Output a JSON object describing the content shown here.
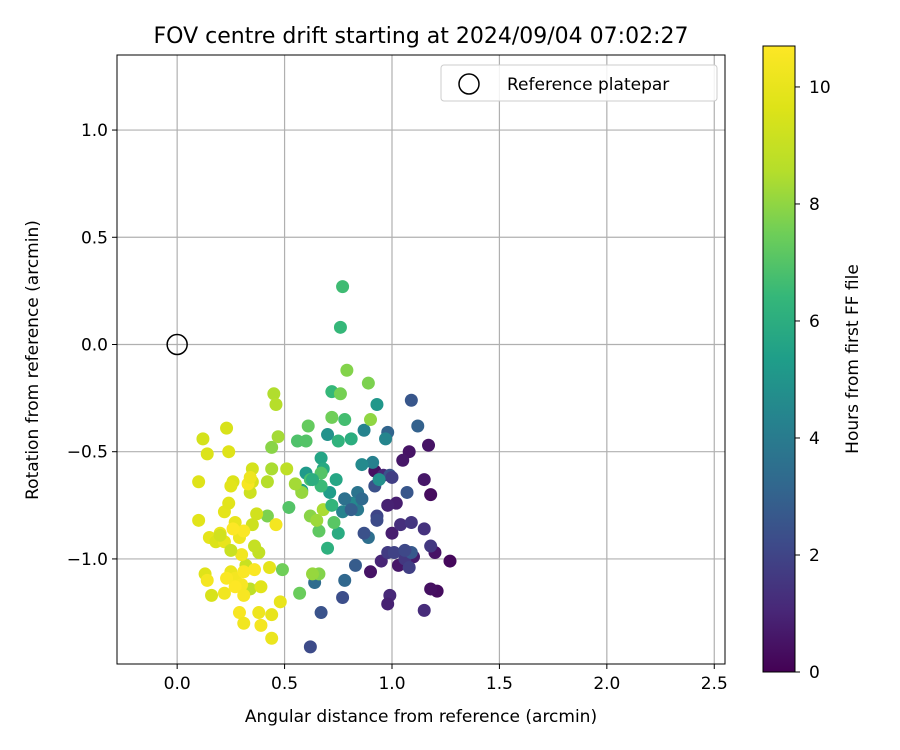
{
  "chart_data": {
    "type": "scatter",
    "title": "FOV centre drift starting at 2024/09/04 07:02:27",
    "xlabel": "Angular distance from reference (arcmin)",
    "ylabel": "Rotation from reference (arcmin)",
    "xlim": [
      -0.28,
      2.55
    ],
    "ylim": [
      -1.49,
      1.35
    ],
    "xticks": [
      0.0,
      0.5,
      1.0,
      1.5,
      2.0,
      2.5
    ],
    "yticks": [
      -1.0,
      -0.5,
      0.0,
      0.5,
      1.0
    ],
    "xtick_labels": [
      "0.0",
      "0.5",
      "1.0",
      "1.5",
      "2.0",
      "2.5"
    ],
    "ytick_labels": [
      "−1.0",
      "−0.5",
      "0.0",
      "0.5",
      "1.0"
    ],
    "grid": true,
    "legend": {
      "position": "top-right",
      "label": "Reference platepar",
      "marker": "open-circle"
    },
    "reference_point": {
      "x": 0.0,
      "y": 0.0
    },
    "colorbar": {
      "label": "Hours from first FF file",
      "range": [
        0,
        10.7
      ],
      "ticks": [
        0,
        2,
        4,
        6,
        8,
        10
      ],
      "tick_labels": [
        "0",
        "2",
        "4",
        "6",
        "8",
        "10"
      ],
      "colormap": "viridis"
    },
    "points": [
      {
        "x": 1.27,
        "y": -1.01,
        "c": 0.2
      },
      {
        "x": 1.21,
        "y": -1.15,
        "c": 0.3
      },
      {
        "x": 1.18,
        "y": -1.14,
        "c": 0.4
      },
      {
        "x": 1.18,
        "y": -0.7,
        "c": 0.3
      },
      {
        "x": 1.17,
        "y": -0.47,
        "c": 0.5
      },
      {
        "x": 1.15,
        "y": -0.63,
        "c": 0.6
      },
      {
        "x": 1.2,
        "y": -0.97,
        "c": 0.5
      },
      {
        "x": 1.1,
        "y": -0.99,
        "c": 0.7
      },
      {
        "x": 1.08,
        "y": -0.5,
        "c": 0.5
      },
      {
        "x": 1.05,
        "y": -0.54,
        "c": 0.6
      },
      {
        "x": 1.02,
        "y": -0.74,
        "c": 0.8
      },
      {
        "x": 0.98,
        "y": -0.75,
        "c": 0.9
      },
      {
        "x": 1.0,
        "y": -0.88,
        "c": 0.8
      },
      {
        "x": 0.95,
        "y": -1.01,
        "c": 1.0
      },
      {
        "x": 0.99,
        "y": -1.17,
        "c": 1.1
      },
      {
        "x": 0.98,
        "y": -1.21,
        "c": 0.9
      },
      {
        "x": 1.15,
        "y": -1.24,
        "c": 1.2
      },
      {
        "x": 0.92,
        "y": -0.59,
        "c": 0.4
      },
      {
        "x": 0.9,
        "y": -1.06,
        "c": 0.5
      },
      {
        "x": 1.03,
        "y": -1.03,
        "c": 0.6
      },
      {
        "x": 1.04,
        "y": -0.84,
        "c": 1.3
      },
      {
        "x": 0.96,
        "y": -0.61,
        "c": 1.1
      },
      {
        "x": 1.15,
        "y": -0.86,
        "c": 1.4
      },
      {
        "x": 1.09,
        "y": -0.83,
        "c": 1.5
      },
      {
        "x": 1.18,
        "y": -0.94,
        "c": 1.6
      },
      {
        "x": 0.98,
        "y": -0.97,
        "c": 1.7
      },
      {
        "x": 1.06,
        "y": -1.0,
        "c": 1.6
      },
      {
        "x": 1.08,
        "y": -1.04,
        "c": 1.8
      },
      {
        "x": 1.01,
        "y": -0.97,
        "c": 1.9
      },
      {
        "x": 0.93,
        "y": -0.8,
        "c": 2.0
      },
      {
        "x": 0.93,
        "y": -0.82,
        "c": 2.2
      },
      {
        "x": 0.92,
        "y": -0.66,
        "c": 2.4
      },
      {
        "x": 0.99,
        "y": -0.61,
        "c": 2.5
      },
      {
        "x": 1.07,
        "y": -0.69,
        "c": 2.6
      },
      {
        "x": 1.09,
        "y": -0.97,
        "c": 2.7
      },
      {
        "x": 1.09,
        "y": -0.26,
        "c": 2.6
      },
      {
        "x": 1.12,
        "y": -0.38,
        "c": 3.0
      },
      {
        "x": 0.98,
        "y": -0.41,
        "c": 3.1
      },
      {
        "x": 0.77,
        "y": -1.18,
        "c": 2.3
      },
      {
        "x": 0.67,
        "y": -1.25,
        "c": 2.5
      },
      {
        "x": 0.62,
        "y": -1.41,
        "c": 2.2
      },
      {
        "x": 0.83,
        "y": -1.03,
        "c": 2.8
      },
      {
        "x": 0.78,
        "y": -1.1,
        "c": 3.2
      },
      {
        "x": 0.64,
        "y": -1.11,
        "c": 3.4
      },
      {
        "x": 0.89,
        "y": -0.9,
        "c": 3.5
      },
      {
        "x": 0.84,
        "y": -0.69,
        "c": 3.7
      },
      {
        "x": 0.84,
        "y": -0.77,
        "c": 3.9
      },
      {
        "x": 0.78,
        "y": -0.72,
        "c": 4.1
      },
      {
        "x": 0.77,
        "y": -0.78,
        "c": 4.3
      },
      {
        "x": 0.91,
        "y": -0.55,
        "c": 4.2
      },
      {
        "x": 0.87,
        "y": -0.4,
        "c": 4.3
      },
      {
        "x": 0.86,
        "y": -0.56,
        "c": 4.6
      },
      {
        "x": 0.94,
        "y": -0.63,
        "c": 4.8
      },
      {
        "x": 0.97,
        "y": -0.44,
        "c": 4.4
      },
      {
        "x": 0.93,
        "y": -0.28,
        "c": 5.1
      },
      {
        "x": 0.7,
        "y": -0.42,
        "c": 4.9
      },
      {
        "x": 0.6,
        "y": -0.6,
        "c": 5.2
      },
      {
        "x": 0.58,
        "y": -0.68,
        "c": 5.4
      },
      {
        "x": 0.67,
        "y": -0.53,
        "c": 5.6
      },
      {
        "x": 0.68,
        "y": -0.58,
        "c": 5.8
      },
      {
        "x": 0.71,
        "y": -0.69,
        "c": 5.3
      },
      {
        "x": 0.75,
        "y": -0.88,
        "c": 5.9
      },
      {
        "x": 0.7,
        "y": -0.95,
        "c": 6.1
      },
      {
        "x": 0.81,
        "y": -0.44,
        "c": 6.0
      },
      {
        "x": 0.75,
        "y": -0.45,
        "c": 6.2
      },
      {
        "x": 0.72,
        "y": -0.22,
        "c": 6.4
      },
      {
        "x": 0.77,
        "y": 0.27,
        "c": 6.6
      },
      {
        "x": 0.76,
        "y": 0.08,
        "c": 6.4
      },
      {
        "x": 0.78,
        "y": -0.35,
        "c": 6.7
      },
      {
        "x": 0.62,
        "y": -0.63,
        "c": 6.8
      },
      {
        "x": 0.67,
        "y": -0.66,
        "c": 6.5
      },
      {
        "x": 0.56,
        "y": -0.45,
        "c": 6.9
      },
      {
        "x": 0.52,
        "y": -0.76,
        "c": 7.0
      },
      {
        "x": 0.73,
        "y": -0.83,
        "c": 7.1
      },
      {
        "x": 0.66,
        "y": -0.87,
        "c": 7.2
      },
      {
        "x": 0.6,
        "y": -0.45,
        "c": 7.0
      },
      {
        "x": 0.61,
        "y": -0.38,
        "c": 7.3
      },
      {
        "x": 0.72,
        "y": -0.34,
        "c": 7.5
      },
      {
        "x": 0.76,
        "y": -0.23,
        "c": 7.6
      },
      {
        "x": 0.79,
        "y": -0.12,
        "c": 7.8
      },
      {
        "x": 0.89,
        "y": -0.18,
        "c": 7.7
      },
      {
        "x": 0.9,
        "y": -0.35,
        "c": 8.0
      },
      {
        "x": 0.62,
        "y": -0.8,
        "c": 7.9
      },
      {
        "x": 0.65,
        "y": -0.82,
        "c": 8.2
      },
      {
        "x": 0.68,
        "y": -0.77,
        "c": 8.4
      },
      {
        "x": 0.58,
        "y": -0.69,
        "c": 8.1
      },
      {
        "x": 0.55,
        "y": -0.65,
        "c": 8.3
      },
      {
        "x": 0.57,
        "y": -1.16,
        "c": 7.4
      },
      {
        "x": 0.49,
        "y": -1.05,
        "c": 7.5
      },
      {
        "x": 0.66,
        "y": -1.07,
        "c": 7.8
      },
      {
        "x": 0.63,
        "y": -1.07,
        "c": 8.1
      },
      {
        "x": 0.42,
        "y": -0.8,
        "c": 7.7
      },
      {
        "x": 0.44,
        "y": -0.48,
        "c": 7.9
      },
      {
        "x": 0.47,
        "y": -0.43,
        "c": 8.3
      },
      {
        "x": 0.44,
        "y": -0.58,
        "c": 8.4
      },
      {
        "x": 0.42,
        "y": -0.64,
        "c": 8.6
      },
      {
        "x": 0.45,
        "y": -0.23,
        "c": 8.5
      },
      {
        "x": 0.46,
        "y": -0.28,
        "c": 8.6
      },
      {
        "x": 0.51,
        "y": -0.58,
        "c": 8.8
      },
      {
        "x": 0.38,
        "y": -0.97,
        "c": 8.9
      },
      {
        "x": 0.36,
        "y": -0.94,
        "c": 9.0
      },
      {
        "x": 0.34,
        "y": -1.14,
        "c": 8.8
      },
      {
        "x": 0.32,
        "y": -1.03,
        "c": 9.1
      },
      {
        "x": 0.35,
        "y": -0.84,
        "c": 9.2
      },
      {
        "x": 0.37,
        "y": -0.79,
        "c": 9.3
      },
      {
        "x": 0.35,
        "y": -0.58,
        "c": 9.4
      },
      {
        "x": 0.35,
        "y": -0.64,
        "c": 9.5
      },
      {
        "x": 0.34,
        "y": -0.69,
        "c": 9.2
      },
      {
        "x": 0.26,
        "y": -0.64,
        "c": 9.6
      },
      {
        "x": 0.23,
        "y": -0.39,
        "c": 9.5
      },
      {
        "x": 0.24,
        "y": -0.5,
        "c": 9.7
      },
      {
        "x": 0.25,
        "y": -0.66,
        "c": 9.8
      },
      {
        "x": 0.12,
        "y": -0.44,
        "c": 9.4
      },
      {
        "x": 0.14,
        "y": -0.51,
        "c": 9.6
      },
      {
        "x": 0.1,
        "y": -0.64,
        "c": 9.7
      },
      {
        "x": 0.1,
        "y": -0.82,
        "c": 9.8
      },
      {
        "x": 0.15,
        "y": -0.9,
        "c": 9.9
      },
      {
        "x": 0.18,
        "y": -0.92,
        "c": 9.6
      },
      {
        "x": 0.13,
        "y": -1.07,
        "c": 9.7
      },
      {
        "x": 0.16,
        "y": -1.17,
        "c": 9.5
      },
      {
        "x": 0.22,
        "y": -0.78,
        "c": 9.9
      },
      {
        "x": 0.27,
        "y": -0.83,
        "c": 10.0
      },
      {
        "x": 0.24,
        "y": -0.74,
        "c": 9.8
      },
      {
        "x": 0.2,
        "y": -0.88,
        "c": 10.1
      },
      {
        "x": 0.22,
        "y": -0.92,
        "c": 10.0
      },
      {
        "x": 0.29,
        "y": -0.9,
        "c": 10.2
      },
      {
        "x": 0.3,
        "y": -0.98,
        "c": 10.3
      },
      {
        "x": 0.25,
        "y": -1.06,
        "c": 10.1
      },
      {
        "x": 0.22,
        "y": -1.16,
        "c": 10.3
      },
      {
        "x": 0.27,
        "y": -1.09,
        "c": 10.4
      },
      {
        "x": 0.3,
        "y": -1.12,
        "c": 10.5
      },
      {
        "x": 0.31,
        "y": -1.06,
        "c": 10.6
      },
      {
        "x": 0.14,
        "y": -1.1,
        "c": 10.4
      },
      {
        "x": 0.29,
        "y": -1.25,
        "c": 10.5
      },
      {
        "x": 0.31,
        "y": -1.3,
        "c": 10.3
      },
      {
        "x": 0.39,
        "y": -1.31,
        "c": 10.4
      },
      {
        "x": 0.38,
        "y": -1.25,
        "c": 10.2
      },
      {
        "x": 0.44,
        "y": -1.26,
        "c": 10.0
      },
      {
        "x": 0.44,
        "y": -1.37,
        "c": 10.1
      },
      {
        "x": 0.48,
        "y": -1.2,
        "c": 10.0
      },
      {
        "x": 0.39,
        "y": -1.13,
        "c": 9.8
      },
      {
        "x": 0.43,
        "y": -1.04,
        "c": 9.9
      },
      {
        "x": 0.33,
        "y": -0.65,
        "c": 10.5
      },
      {
        "x": 0.46,
        "y": -0.84,
        "c": 10.4
      },
      {
        "x": 0.31,
        "y": -0.87,
        "c": 10.6
      },
      {
        "x": 0.26,
        "y": -0.86,
        "c": 10.7
      },
      {
        "x": 0.34,
        "y": -0.62,
        "c": 10.2
      },
      {
        "x": 0.2,
        "y": -0.89,
        "c": 9.3
      },
      {
        "x": 0.25,
        "y": -0.96,
        "c": 9.1
      },
      {
        "x": 0.36,
        "y": -1.05,
        "c": 10.6
      },
      {
        "x": 0.27,
        "y": -1.13,
        "c": 10.7
      },
      {
        "x": 0.23,
        "y": -1.09,
        "c": 10.6
      },
      {
        "x": 0.31,
        "y": -1.17,
        "c": 10.5
      },
      {
        "x": 0.74,
        "y": -0.63,
        "c": 5.7
      },
      {
        "x": 0.81,
        "y": -0.74,
        "c": 4.5
      },
      {
        "x": 0.72,
        "y": -0.75,
        "c": 6.3
      },
      {
        "x": 0.67,
        "y": -0.6,
        "c": 7.0
      },
      {
        "x": 0.63,
        "y": -0.63,
        "c": 6.0
      },
      {
        "x": 0.78,
        "y": -0.72,
        "c": 3.6
      },
      {
        "x": 0.86,
        "y": -0.72,
        "c": 3.3
      },
      {
        "x": 0.81,
        "y": -0.77,
        "c": 2.9
      },
      {
        "x": 1.06,
        "y": -0.96,
        "c": 2.1
      },
      {
        "x": 1.0,
        "y": -0.62,
        "c": 1.8
      },
      {
        "x": 0.87,
        "y": -0.88,
        "c": 2.4
      }
    ]
  }
}
